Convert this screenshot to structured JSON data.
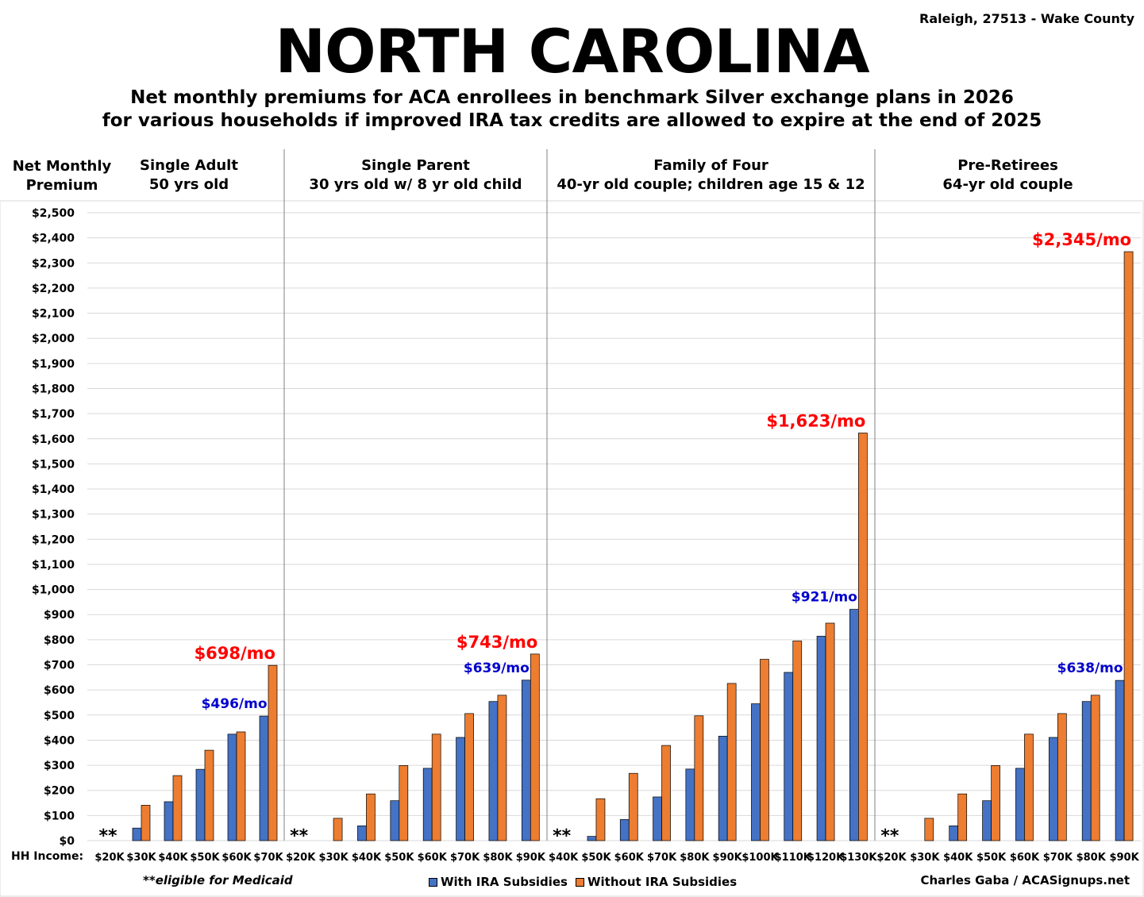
{
  "header": {
    "title": "NORTH CAROLINA",
    "subtitle_line1": "Net monthly premiums for ACA enrollees in benchmark Silver exchange plans in 2026",
    "subtitle_line2": "for various households if improved IRA tax credits are allowed to expire at the end of 2025",
    "location": "Raleigh, 27513 - Wake County"
  },
  "y_label_line1": "Net Monthly",
  "y_label_line2": "Premium",
  "x_label": "HH Income:",
  "footer": {
    "note": "**eligible for Medicaid",
    "credit": "Charles Gaba / ACASignups.net"
  },
  "colors": {
    "with": "#4472C4",
    "without": "#ED7D31",
    "red_label": "#FF0000",
    "blue_label": "#0000CC"
  },
  "chart_data": {
    "type": "bar",
    "ylim": [
      0,
      2500
    ],
    "ytick_step": 100,
    "ytick_labels": [
      "$0",
      "$100",
      "$200",
      "$300",
      "$400",
      "$500",
      "$600",
      "$700",
      "$800",
      "$900",
      "$1,000",
      "$1,100",
      "$1,200",
      "$1,300",
      "$1,400",
      "$1,500",
      "$1,600",
      "$1,700",
      "$1,800",
      "$1,900",
      "$2,000",
      "$2,100",
      "$2,200",
      "$2,300",
      "$2,400",
      "$2,500"
    ],
    "grid": true,
    "legend": [
      "With IRA Subsidies",
      "Without IRA Subsidies"
    ],
    "legend_position": "bottom-center",
    "series_names": [
      "With IRA Subsidies",
      "Without IRA Subsidies"
    ],
    "groups": [
      {
        "title_line1": "Single Adult",
        "title_line2": "50 yrs old",
        "categories": [
          "$20K",
          "$30K",
          "$40K",
          "$50K",
          "$60K",
          "$70K"
        ],
        "with": [
          0,
          50,
          155,
          284,
          424,
          496
        ],
        "without": [
          0,
          141,
          259,
          360,
          433,
          698
        ],
        "medicaid_mark": "**",
        "annotations": [
          {
            "text": "$698/mo",
            "series": "without",
            "index": 5,
            "color": "red"
          },
          {
            "text": "$496/mo",
            "series": "with",
            "index": 5,
            "color": "blue"
          }
        ]
      },
      {
        "title_line1": "Single Parent",
        "title_line2": "30 yrs old w/ 8 yr old child",
        "categories": [
          "$20K",
          "$30K",
          "$40K",
          "$50K",
          "$60K",
          "$70K",
          "$80K",
          "$90K"
        ],
        "with": [
          0,
          0,
          59,
          159,
          288,
          411,
          554,
          639
        ],
        "without": [
          0,
          89,
          186,
          299,
          424,
          506,
          579,
          743
        ],
        "medicaid_mark": "**",
        "annotations": [
          {
            "text": "$743/mo",
            "series": "without",
            "index": 7,
            "color": "red"
          },
          {
            "text": "$639/mo",
            "series": "with",
            "index": 7,
            "color": "blue"
          }
        ]
      },
      {
        "title_line1": "Family of Four",
        "title_line2": "40-yr old couple; children age 15 & 12",
        "categories": [
          "$40K",
          "$50K",
          "$60K",
          "$70K",
          "$80K",
          "$90K",
          "$100K",
          "$110K",
          "$120K",
          "$130K"
        ],
        "with": [
          0,
          17,
          84,
          174,
          285,
          416,
          545,
          670,
          814,
          921
        ],
        "without": [
          0,
          167,
          268,
          379,
          497,
          626,
          722,
          795,
          866,
          1623
        ],
        "medicaid_mark": "**",
        "annotations": [
          {
            "text": "$1,623/mo",
            "series": "without",
            "index": 9,
            "color": "red"
          },
          {
            "text": "$921/mo",
            "series": "with",
            "index": 9,
            "color": "blue"
          }
        ]
      },
      {
        "title_line1": "Pre-Retirees",
        "title_line2": "64-yr old couple",
        "categories": [
          "$20K",
          "$30K",
          "$40K",
          "$50K",
          "$60K",
          "$70K",
          "$80K",
          "$90K"
        ],
        "with": [
          0,
          0,
          59,
          159,
          288,
          411,
          554,
          638
        ],
        "without": [
          0,
          89,
          186,
          299,
          424,
          506,
          579,
          2345
        ],
        "medicaid_mark": "**",
        "annotations": [
          {
            "text": "$2,345/mo",
            "series": "without",
            "index": 7,
            "color": "red"
          },
          {
            "text": "$638/mo",
            "series": "with",
            "index": 7,
            "color": "blue"
          }
        ]
      }
    ]
  }
}
